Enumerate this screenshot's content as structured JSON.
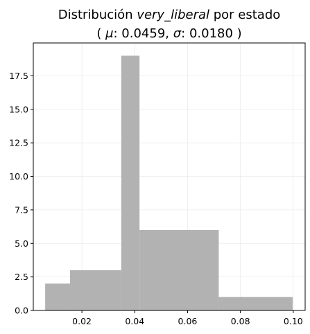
{
  "chart_data": {
    "type": "histogram",
    "title_line1_prefix": "Distribución ",
    "title_line1_italic": "very_liberal",
    "title_line1_suffix": " por estado",
    "title_line2_open": "( ",
    "title_mu_symbol": "μ",
    "title_mu_value": ": 0.0459, ",
    "title_sigma_symbol": "σ",
    "title_sigma_value": ": 0.0180 )",
    "xlabel": "",
    "ylabel": "",
    "bins": [
      {
        "x0": 0.0061,
        "x1": 0.0155,
        "count": 2
      },
      {
        "x0": 0.0155,
        "x1": 0.0349,
        "count": 3
      },
      {
        "x0": 0.0349,
        "x1": 0.0418,
        "count": 19
      },
      {
        "x0": 0.0418,
        "x1": 0.0718,
        "count": 6
      },
      {
        "x0": 0.0718,
        "x1": 0.0998,
        "count": 1
      }
    ],
    "xlim": [
      0.0016,
      0.1045
    ],
    "ylim": [
      0,
      19.95
    ],
    "xticks": [
      0.02,
      0.04,
      0.06,
      0.08,
      0.1
    ],
    "xtick_labels": [
      "0.02",
      "0.04",
      "0.06",
      "0.08",
      "0.10"
    ],
    "yticks": [
      0,
      2.5,
      5,
      7.5,
      10,
      12.5,
      15,
      17.5
    ],
    "ytick_labels": [
      "0.0",
      "2.5",
      "5.0",
      "7.5",
      "10.0",
      "12.5",
      "15.0",
      "17.5"
    ],
    "grid": true,
    "bar_color": "#b2b2b2",
    "grid_color": "#ebebeb"
  }
}
